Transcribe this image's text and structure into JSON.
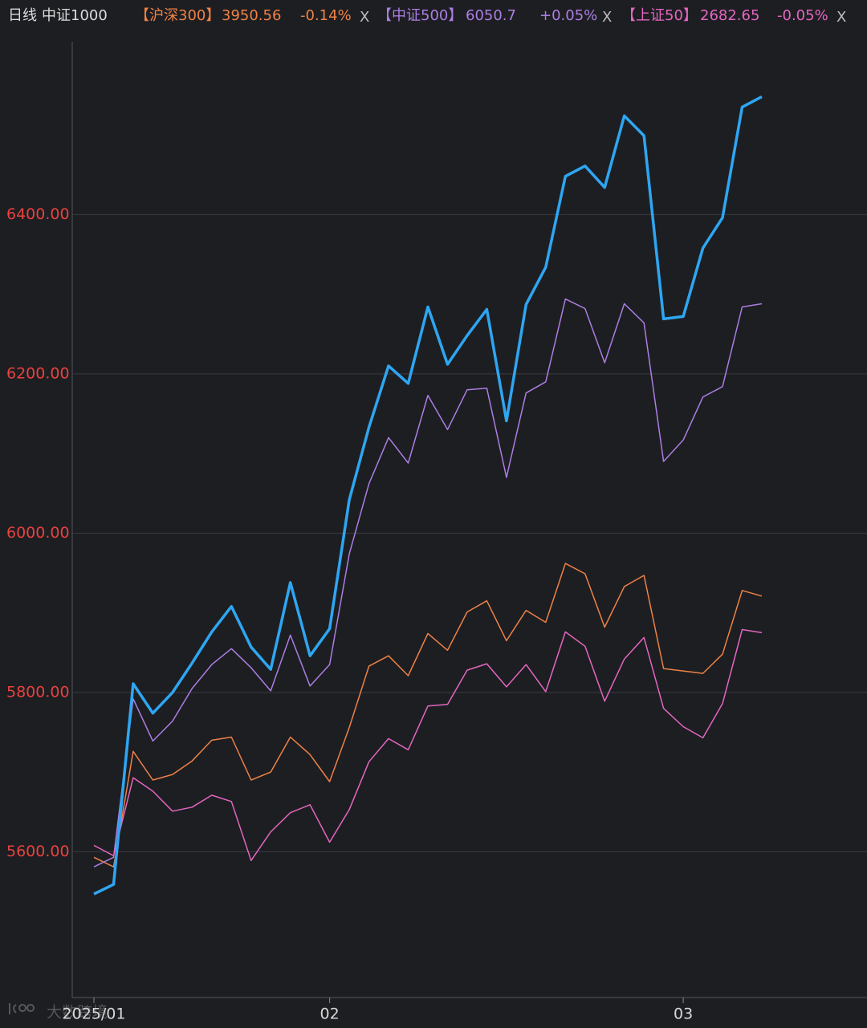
{
  "chart_data": {
    "type": "line",
    "period": "日线",
    "watermark": "大数跨境",
    "close_label": "X",
    "categories": [
      "2025/01",
      null,
      null,
      null,
      null,
      null,
      null,
      null,
      null,
      null,
      null,
      null,
      "02",
      null,
      null,
      null,
      null,
      null,
      null,
      null,
      null,
      null,
      null,
      null,
      null,
      null,
      null,
      null,
      null,
      null,
      "03",
      null,
      null,
      null,
      null
    ],
    "ylim": [
      5417,
      6617
    ],
    "yticks": [
      {
        "value": 5600,
        "label": "5600.00"
      },
      {
        "value": 5800,
        "label": "5800.00"
      },
      {
        "value": 6000,
        "label": "6000.00"
      },
      {
        "value": 6200,
        "label": "6200.00"
      },
      {
        "value": 6400,
        "label": "6400.00"
      }
    ],
    "grid": true,
    "series": [
      {
        "name": "中证1000",
        "color": "#2ea6f2",
        "width": 3.5,
        "values": [
          5547,
          5559,
          5811,
          5774,
          5800,
          5837,
          5876,
          5908,
          5857,
          5829,
          5938,
          5846,
          5880,
          6042,
          6133,
          6210,
          6188,
          6284,
          6212,
          6248,
          6281,
          6141,
          6287,
          6334,
          6448,
          6461,
          6434,
          6524,
          6499,
          6269,
          6272,
          6358,
          6396,
          6535,
          6548
        ]
      },
      {
        "name": "【沪深300】",
        "color": "#ee8246",
        "width": 1.5,
        "price": 3950.56,
        "change": "-0.14%",
        "values": [
          5593,
          5581,
          5726,
          5690,
          5697,
          5714,
          5740,
          5744,
          5690,
          5700,
          5744,
          5722,
          5688,
          5756,
          5833,
          5846,
          5821,
          5874,
          5853,
          5901,
          5915,
          5865,
          5903,
          5888,
          5962,
          5949,
          5882,
          5933,
          5947,
          5830,
          5827,
          5824,
          5848,
          5928,
          5921
        ]
      },
      {
        "name": "【中证500】",
        "color": "#ac7ee3",
        "width": 1.5,
        "price": 6050.7,
        "change": "+0.05%",
        "values": [
          5581,
          5593,
          5792,
          5739,
          5764,
          5805,
          5835,
          5855,
          5831,
          5802,
          5872,
          5808,
          5835,
          5974,
          6062,
          6120,
          6088,
          6173,
          6130,
          6180,
          6182,
          6070,
          6176,
          6190,
          6294,
          6282,
          6214,
          6288,
          6264,
          6090,
          6117,
          6171,
          6184,
          6284,
          6288
        ]
      },
      {
        "name": "【上证50】",
        "color": "#e466c0",
        "width": 1.5,
        "price": 2682.65,
        "change": "-0.05%",
        "values": [
          5608,
          5595,
          5693,
          5676,
          5651,
          5656,
          5671,
          5663,
          5589,
          5625,
          5649,
          5659,
          5612,
          5653,
          5713,
          5742,
          5728,
          5783,
          5785,
          5828,
          5836,
          5807,
          5835,
          5801,
          5876,
          5858,
          5789,
          5842,
          5869,
          5780,
          5757,
          5743,
          5786,
          5879,
          5875
        ]
      }
    ]
  }
}
